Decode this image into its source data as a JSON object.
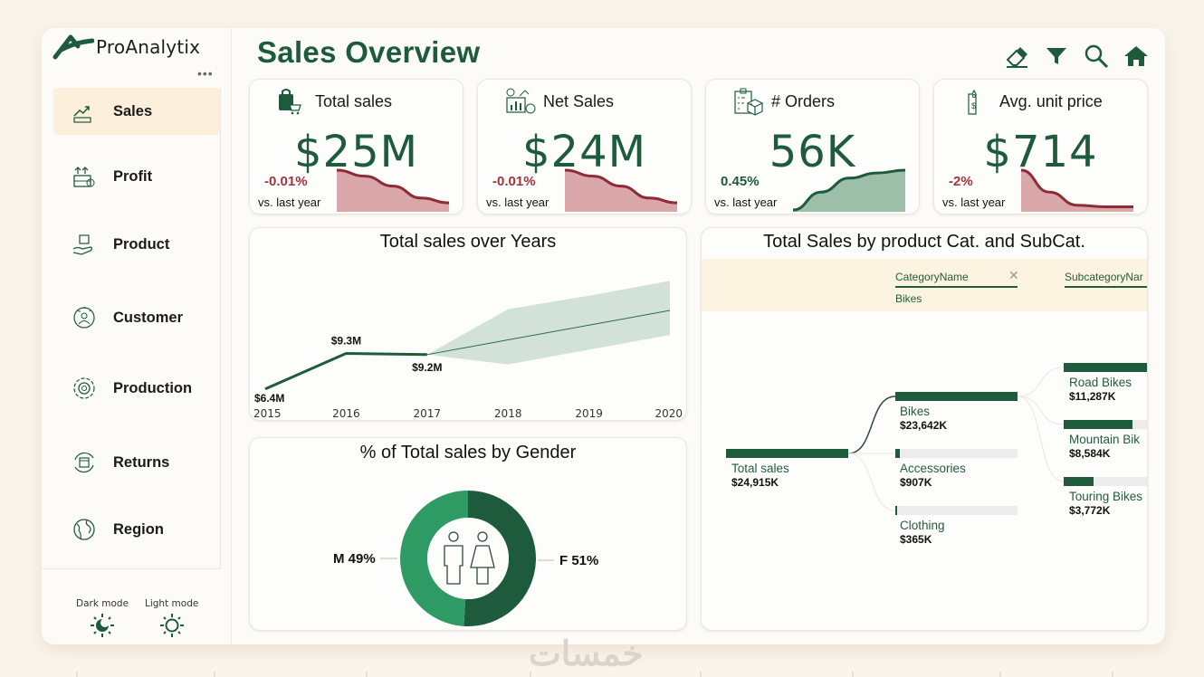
{
  "app": {
    "name": "ProAnalytix",
    "more": "•••"
  },
  "header": {
    "title": "Sales Overview"
  },
  "toolbar": [
    {
      "name": "eraser-icon",
      "label": "Clear filters"
    },
    {
      "name": "filter-icon",
      "label": "Filter"
    },
    {
      "name": "search-icon",
      "label": "Search"
    },
    {
      "name": "home-icon",
      "label": "Home"
    }
  ],
  "sidebar": {
    "items": [
      {
        "label": "Sales",
        "icon": "sales-icon",
        "active": true
      },
      {
        "label": "Profit",
        "icon": "profit-icon"
      },
      {
        "label": "Product",
        "icon": "product-icon"
      },
      {
        "label": "Customer",
        "icon": "customer-icon"
      },
      {
        "label": "Production",
        "icon": "production-icon"
      },
      {
        "label": "Returns",
        "icon": "returns-icon"
      },
      {
        "label": "Region",
        "icon": "region-icon"
      }
    ],
    "dark_mode": "Dark mode",
    "light_mode": "Light mode"
  },
  "kpis": [
    {
      "title": "Total sales",
      "value": "$25M",
      "delta": "-0.01%",
      "vs": "vs. last year",
      "trend": "down",
      "spark": [
        1.0,
        0.85,
        0.6,
        0.3,
        0.18
      ]
    },
    {
      "title": "Net Sales",
      "value": "$24M",
      "delta": "-0.01%",
      "vs": "vs. last year",
      "trend": "down",
      "spark": [
        1.0,
        0.85,
        0.6,
        0.3,
        0.18
      ]
    },
    {
      "title": "# Orders",
      "value": "56K",
      "delta": "0.45%",
      "vs": "vs. last year",
      "trend": "up",
      "spark": [
        0.0,
        0.45,
        0.8,
        0.93,
        1.0
      ]
    },
    {
      "title": "Avg. unit price",
      "value": "$714",
      "delta": "-2%",
      "vs": "vs. last year",
      "trend": "down",
      "spark": [
        1.0,
        0.45,
        0.12,
        0.08,
        0.08
      ]
    }
  ],
  "colors": {
    "accent": "#1d5b3c",
    "negative": "#a3333d",
    "negative_fill": "#d9a6aa",
    "positive_fill": "#9dbfa9",
    "active_nav": "#fcf0dc"
  },
  "chart_data": [
    {
      "type": "line",
      "title": "Total sales over Years",
      "x": [
        "2015",
        "2016",
        "2017",
        "2018",
        "2019",
        "2020"
      ],
      "series": [
        {
          "name": "Total sales",
          "values": [
            6.4,
            9.3,
            9.2,
            null,
            null,
            null
          ],
          "labels": [
            "$6.4M",
            "$9.3M",
            "$9.2M"
          ]
        },
        {
          "name": "Forecast",
          "values": [
            null,
            null,
            9.2,
            10.4,
            11.6,
            12.8
          ]
        },
        {
          "name": "Forecast upper",
          "values": [
            null,
            null,
            9.2,
            12.9,
            14.0,
            15.2
          ]
        },
        {
          "name": "Forecast lower",
          "values": [
            null,
            null,
            9.2,
            8.4,
            9.6,
            10.8
          ]
        }
      ],
      "ylim": [
        5.5,
        17
      ]
    },
    {
      "type": "pie",
      "title": "% of Total sales by Gender",
      "categories": [
        "M",
        "F"
      ],
      "values": [
        49,
        51
      ],
      "labels": [
        "M 49%",
        "F 51%"
      ]
    },
    {
      "type": "bar",
      "title": "Total Sales by product Cat. and SubCat.",
      "slicer": {
        "field": "CategoryName",
        "value": "Bikes",
        "next_field": "SubcategoryNar"
      },
      "root": {
        "label": "Total sales",
        "value": 24915,
        "display": "$24,915K"
      },
      "categories": [
        {
          "label": "Bikes",
          "value": 23642,
          "display": "$23,642K"
        },
        {
          "label": "Accessories",
          "value": 907,
          "display": "$907K"
        },
        {
          "label": "Clothing",
          "value": 365,
          "display": "$365K"
        }
      ],
      "subcategories": [
        {
          "label": "Road Bikes",
          "value": 11287,
          "display": "$11,287K"
        },
        {
          "label": "Mountain Bik",
          "value": 8584,
          "display": "$8,584K"
        },
        {
          "label": "Touring Bikes",
          "value": 3772,
          "display": "$3,772K"
        }
      ]
    }
  ],
  "watermark": "خمسات"
}
